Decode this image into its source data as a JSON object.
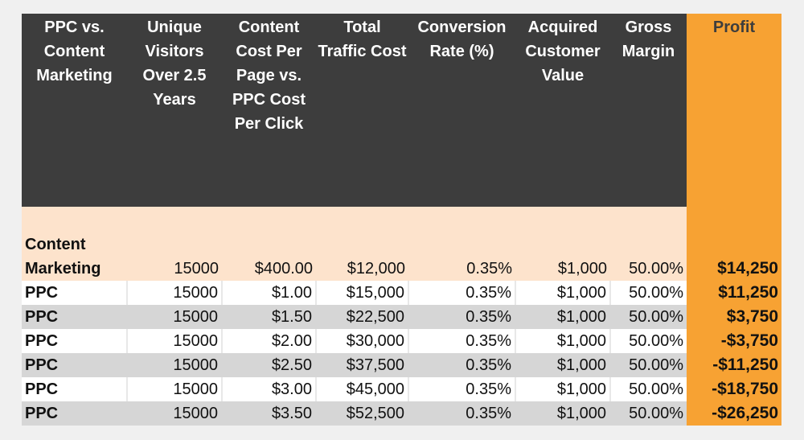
{
  "headers": [
    "PPC vs. Content Marketing",
    "Unique Visitors Over 2.5 Years",
    "Content Cost Per Page vs. PPC Cost Per Click",
    "Total Traffic Cost",
    "Conversion Rate (%)",
    "Acquired Customer Value",
    "Gross Margin",
    "Profit"
  ],
  "rows": [
    [
      "Content Marketing",
      "15000",
      "$400.00",
      "$12,000",
      "0.35%",
      "$1,000",
      "50.00%",
      "$14,250"
    ],
    [
      "PPC",
      "15000",
      "$1.00",
      "$15,000",
      "0.35%",
      "$1,000",
      "50.00%",
      "$11,250"
    ],
    [
      "PPC",
      "15000",
      "$1.50",
      "$22,500",
      "0.35%",
      "$1,000",
      "50.00%",
      "$3,750"
    ],
    [
      "PPC",
      "15000",
      "$2.00",
      "$30,000",
      "0.35%",
      "$1,000",
      "50.00%",
      "-$3,750"
    ],
    [
      "PPC",
      "15000",
      "$2.50",
      "$37,500",
      "0.35%",
      "$1,000",
      "50.00%",
      "-$11,250"
    ],
    [
      "PPC",
      "15000",
      "$3.00",
      "$45,000",
      "0.35%",
      "$1,000",
      "50.00%",
      "-$18,750"
    ],
    [
      "PPC",
      "15000",
      "$3.50",
      "$52,500",
      "0.35%",
      "$1,000",
      "50.00%",
      "-$26,250"
    ]
  ],
  "colors": {
    "header": "#3d3d3d",
    "profit": "#f7a233",
    "content_row": "#fde3cc",
    "alt_row": "#d6d6d6"
  }
}
